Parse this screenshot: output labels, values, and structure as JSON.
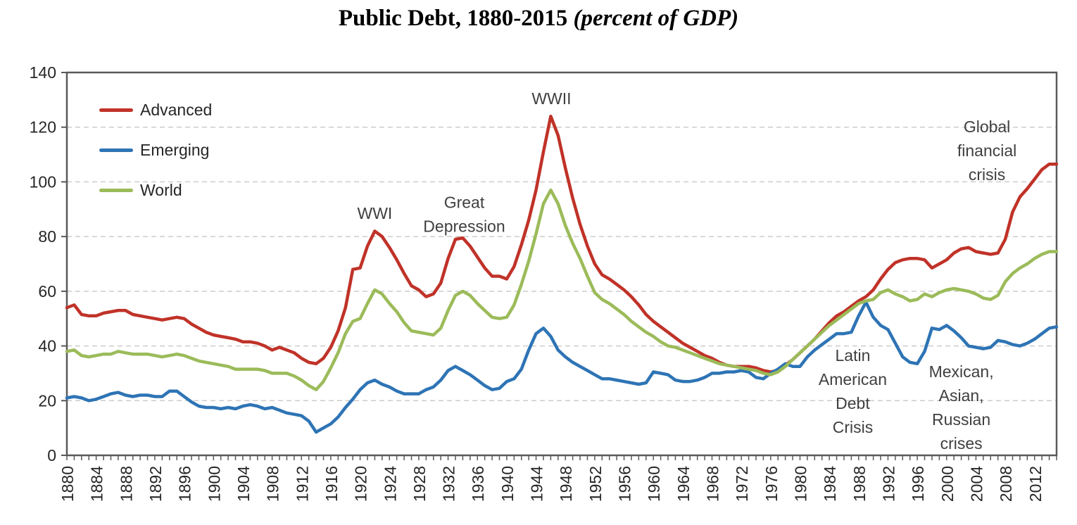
{
  "title": {
    "part1": "Public Debt, 1880-2015 ",
    "part2": "(percent of GDP)"
  },
  "colors": {
    "advanced": "#c03228",
    "emerging": "#2e74b5",
    "world": "#9bbb59",
    "grid": "#cccccc",
    "frame": "#595959",
    "tick": "#595959",
    "tick_text": "#262626",
    "annotation_text": "#3f3f3f",
    "background": "#ffffff"
  },
  "legend": {
    "items": [
      {
        "label": "Advanced",
        "color": "#c03228"
      },
      {
        "label": "Emerging",
        "color": "#2e74b5"
      },
      {
        "label": "World",
        "color": "#9bbb59"
      }
    ]
  },
  "chart_data": {
    "type": "line",
    "title": "Public Debt, 1880-2015 (percent of GDP)",
    "xlabel": "",
    "ylabel": "",
    "x_start": 1880,
    "x_end": 2015,
    "x_step": 1,
    "ylim": [
      0,
      140
    ],
    "y_ticks": [
      0,
      20,
      40,
      60,
      80,
      100,
      120,
      140
    ],
    "x_tick_labels": [
      1880,
      1884,
      1888,
      1892,
      1896,
      1900,
      1904,
      1908,
      1912,
      1916,
      1920,
      1924,
      1928,
      1932,
      1936,
      1940,
      1944,
      1948,
      1952,
      1956,
      1960,
      1964,
      1968,
      1972,
      1976,
      1980,
      1984,
      1988,
      1992,
      1996,
      2000,
      2004,
      2008,
      2012
    ],
    "grid": "horizontal-dashed",
    "legend_position": "top-left-inside",
    "series": [
      {
        "name": "Advanced",
        "color": "#c03228",
        "values": [
          54,
          55,
          51.5,
          51,
          51,
          52,
          52.5,
          53,
          53,
          51.5,
          51,
          50.5,
          50,
          49.5,
          50,
          50.5,
          50,
          48,
          46.5,
          45,
          44,
          43.5,
          43,
          42.5,
          41.5,
          41.5,
          41,
          40,
          38.5,
          39.5,
          38.5,
          37.5,
          35.5,
          34,
          33.5,
          35.5,
          39.5,
          45.5,
          54,
          68,
          68.5,
          76.5,
          82,
          80,
          76,
          71.5,
          66.5,
          62,
          60.5,
          58,
          59,
          63,
          72,
          79,
          79.5,
          76.5,
          72.5,
          68.5,
          65.5,
          65.5,
          64.5,
          69,
          77,
          86,
          97,
          111,
          124,
          117,
          105,
          94,
          84.5,
          76.5,
          70,
          66,
          64.5,
          62.5,
          60.5,
          58,
          55,
          51.5,
          49,
          47,
          45,
          43,
          41,
          39.5,
          38,
          36.5,
          35.5,
          34,
          33,
          32.5,
          32.5,
          32.5,
          32,
          31,
          30.5,
          31,
          33,
          35,
          37.5,
          40,
          42.5,
          45.5,
          48.5,
          51,
          52.5,
          54.5,
          56.5,
          58,
          60.5,
          64.5,
          68,
          70.5,
          71.5,
          72,
          72,
          71.5,
          68.5,
          70,
          71.5,
          74,
          75.5,
          76,
          74.5,
          74,
          73.5,
          74,
          79,
          89,
          94.5,
          97.5,
          101,
          104.5,
          106.5,
          106.5
        ]
      },
      {
        "name": "Emerging",
        "color": "#2e74b5",
        "values": [
          21,
          21.5,
          21,
          20,
          20.5,
          21.5,
          22.5,
          23,
          22,
          21.5,
          22,
          22,
          21.5,
          21.5,
          23.5,
          23.5,
          21.5,
          19.5,
          18,
          17.5,
          17.5,
          17,
          17.5,
          17,
          18,
          18.5,
          18,
          17,
          17.5,
          16.5,
          15.5,
          15,
          14.5,
          12.5,
          8.5,
          10,
          11.5,
          14,
          17.5,
          20.5,
          24,
          26.5,
          27.5,
          26,
          25,
          23.5,
          22.5,
          22.5,
          22.5,
          24,
          25,
          27.5,
          31,
          32.5,
          31,
          29.5,
          27.5,
          25.5,
          24,
          24.5,
          27,
          28,
          31.5,
          38.5,
          44.5,
          46.5,
          43.5,
          38.5,
          36,
          34,
          32.5,
          31,
          29.5,
          28,
          28,
          27.5,
          27,
          26.5,
          26,
          26.5,
          30.5,
          30,
          29.5,
          27.5,
          27,
          27,
          27.5,
          28.5,
          30,
          30,
          30.5,
          30.5,
          31,
          30.5,
          28.5,
          28,
          30,
          31.5,
          33.5,
          32.5,
          32.5,
          36,
          38.5,
          40.5,
          42.5,
          44.5,
          44.5,
          45,
          51,
          56,
          50.5,
          47.5,
          46,
          41,
          36,
          34,
          33.5,
          38,
          46.5,
          46,
          47.5,
          45.5,
          43,
          40,
          39.5,
          39,
          39.5,
          42,
          41.5,
          40.5,
          40,
          41,
          42.5,
          44.5,
          46.5,
          47
        ]
      },
      {
        "name": "World",
        "color": "#9bbb59",
        "values": [
          38,
          38.5,
          36.5,
          36,
          36.5,
          37,
          37,
          38,
          37.5,
          37,
          37,
          37,
          36.5,
          36,
          36.5,
          37,
          36.5,
          35.5,
          34.5,
          34,
          33.5,
          33,
          32.5,
          31.5,
          31.5,
          31.5,
          31.5,
          31,
          30,
          30,
          30,
          29,
          27.5,
          25.5,
          24,
          27,
          32,
          37.5,
          44.5,
          49,
          50,
          55.5,
          60.5,
          59,
          55.5,
          52.5,
          48.5,
          45.5,
          45,
          44.5,
          44,
          46.5,
          53,
          58.5,
          60,
          58.5,
          55.5,
          53,
          50.5,
          50,
          50.5,
          55,
          62.5,
          71,
          81,
          92,
          97,
          92,
          84,
          77.5,
          72,
          65.5,
          59.5,
          57,
          55.5,
          53.5,
          51.5,
          49,
          47,
          45,
          43.5,
          41.5,
          40,
          39.5,
          38.5,
          37.5,
          36.5,
          35.5,
          34.5,
          33.5,
          33,
          32.5,
          32,
          31.5,
          31,
          30,
          29.5,
          30.5,
          32.5,
          35,
          37.5,
          40,
          42.5,
          45,
          47.5,
          49.5,
          51.5,
          53.5,
          55.5,
          56.5,
          57,
          59.5,
          60.5,
          59,
          58,
          56.5,
          57,
          59,
          58,
          59.5,
          60.5,
          61,
          60.5,
          60,
          59,
          57.5,
          57,
          58.5,
          63.5,
          66.5,
          68.5,
          70,
          72,
          73.5,
          74.5,
          74.5
        ]
      }
    ],
    "annotations": [
      {
        "id": "wwi",
        "lines": [
          "WWI"
        ],
        "x": 1922,
        "y": 88.5
      },
      {
        "id": "great-depression",
        "lines": [
          "Great",
          "Depression"
        ],
        "x": 1934.2,
        "y": 92.5
      },
      {
        "id": "wwii",
        "lines": [
          "WWII"
        ],
        "x": 1946.1,
        "y": 130.5
      },
      {
        "id": "latin-american-debt-crisis",
        "lines": [
          "Latin",
          "American",
          "Debt",
          "Crisis"
        ],
        "x": 1987.2,
        "y": 36.5
      },
      {
        "id": "mexican-asian-russian-crises",
        "lines": [
          "Mexican,",
          "Asian,",
          "Russian",
          "crises"
        ],
        "x": 2002,
        "y": 30.6
      },
      {
        "id": "global-financial-crisis",
        "lines": [
          "Global",
          "financial",
          "crisis"
        ],
        "x": 2005.5,
        "y": 120.2
      }
    ]
  }
}
